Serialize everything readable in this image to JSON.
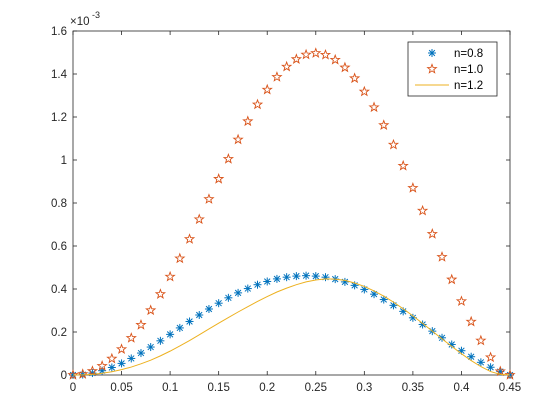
{
  "chart_data": {
    "type": "scatter",
    "x_exponent_label": "",
    "y_exponent": {
      "base": "×10",
      "power": "-3"
    },
    "xlim": [
      0,
      0.45
    ],
    "ylim": [
      0,
      1.6
    ],
    "x_ticks": [
      0,
      0.05,
      0.1,
      0.15,
      0.2,
      0.25,
      0.3,
      0.35,
      0.4,
      0.45
    ],
    "x_tick_labels": [
      "0",
      "0.05",
      "0.1",
      "0.15",
      "0.2",
      "0.25",
      "0.3",
      "0.35",
      "0.4",
      "0.45"
    ],
    "y_ticks": [
      0,
      0.2,
      0.4,
      0.6,
      0.8,
      1.0,
      1.2,
      1.4,
      1.6
    ],
    "y_tick_labels": [
      "0",
      "0.2",
      "0.4",
      "0.6",
      "0.8",
      "1",
      "1.2",
      "1.4",
      "1.6"
    ],
    "grid": false,
    "legend_position": "top-right",
    "series": [
      {
        "name": "n=0.8",
        "marker": "asterisk",
        "color": "#0072BD",
        "x": [
          0,
          0.01,
          0.02,
          0.03,
          0.04,
          0.05,
          0.06,
          0.07,
          0.08,
          0.09,
          0.1,
          0.11,
          0.12,
          0.13,
          0.14,
          0.15,
          0.16,
          0.17,
          0.18,
          0.19,
          0.2,
          0.21,
          0.22,
          0.23,
          0.24,
          0.25,
          0.26,
          0.27,
          0.28,
          0.29,
          0.3,
          0.31,
          0.32,
          0.33,
          0.34,
          0.35,
          0.36,
          0.37,
          0.38,
          0.39,
          0.4,
          0.41,
          0.42,
          0.43,
          0.44,
          0.45
        ],
        "y": [
          0,
          0.002,
          0.009,
          0.02,
          0.035,
          0.054,
          0.077,
          0.102,
          0.13,
          0.159,
          0.189,
          0.219,
          0.249,
          0.279,
          0.307,
          0.334,
          0.359,
          0.382,
          0.402,
          0.42,
          0.435,
          0.447,
          0.455,
          0.46,
          0.462,
          0.46,
          0.455,
          0.446,
          0.433,
          0.417,
          0.398,
          0.376,
          0.351,
          0.324,
          0.296,
          0.266,
          0.235,
          0.204,
          0.173,
          0.142,
          0.113,
          0.085,
          0.059,
          0.036,
          0.016,
          0
        ]
      },
      {
        "name": "n=1.0",
        "marker": "pentagram",
        "color": "#D95319",
        "x": [
          0,
          0.01,
          0.02,
          0.03,
          0.04,
          0.05,
          0.06,
          0.07,
          0.08,
          0.09,
          0.1,
          0.11,
          0.12,
          0.13,
          0.14,
          0.15,
          0.16,
          0.17,
          0.18,
          0.19,
          0.2,
          0.21,
          0.22,
          0.23,
          0.24,
          0.25,
          0.26,
          0.27,
          0.28,
          0.29,
          0.3,
          0.31,
          0.32,
          0.33,
          0.34,
          0.35,
          0.36,
          0.37,
          0.38,
          0.39,
          0.4,
          0.41,
          0.42,
          0.43,
          0.44,
          0.45
        ],
        "y": [
          0,
          0.004,
          0.018,
          0.042,
          0.076,
          0.12,
          0.172,
          0.233,
          0.301,
          0.376,
          0.457,
          0.542,
          0.632,
          0.724,
          0.818,
          0.912,
          1.005,
          1.095,
          1.18,
          1.258,
          1.327,
          1.386,
          1.434,
          1.469,
          1.49,
          1.497,
          1.489,
          1.466,
          1.43,
          1.38,
          1.318,
          1.245,
          1.162,
          1.071,
          0.973,
          0.87,
          0.764,
          0.656,
          0.549,
          0.444,
          0.343,
          0.248,
          0.16,
          0.082,
          0.017,
          0
        ]
      },
      {
        "name": "n=1.2",
        "marker": "line",
        "color": "#EDB120",
        "x": [
          0,
          0.01,
          0.02,
          0.03,
          0.04,
          0.05,
          0.06,
          0.07,
          0.08,
          0.09,
          0.1,
          0.11,
          0.12,
          0.13,
          0.14,
          0.15,
          0.16,
          0.17,
          0.18,
          0.19,
          0.2,
          0.21,
          0.22,
          0.23,
          0.24,
          0.25,
          0.26,
          0.27,
          0.28,
          0.29,
          0.3,
          0.31,
          0.32,
          0.33,
          0.34,
          0.35,
          0.36,
          0.37,
          0.38,
          0.39,
          0.4,
          0.41,
          0.42,
          0.43,
          0.44,
          0.45
        ],
        "y": [
          0,
          0.0005,
          0.003,
          0.008,
          0.015,
          0.025,
          0.037,
          0.052,
          0.069,
          0.089,
          0.111,
          0.135,
          0.16,
          0.187,
          0.214,
          0.241,
          0.267,
          0.293,
          0.318,
          0.342,
          0.365,
          0.386,
          0.404,
          0.42,
          0.433,
          0.442,
          0.447,
          0.446,
          0.44,
          0.428,
          0.412,
          0.391,
          0.367,
          0.339,
          0.308,
          0.275,
          0.24,
          0.204,
          0.168,
          0.133,
          0.099,
          0.067,
          0.039,
          0.016,
          0.003,
          0
        ]
      }
    ]
  }
}
